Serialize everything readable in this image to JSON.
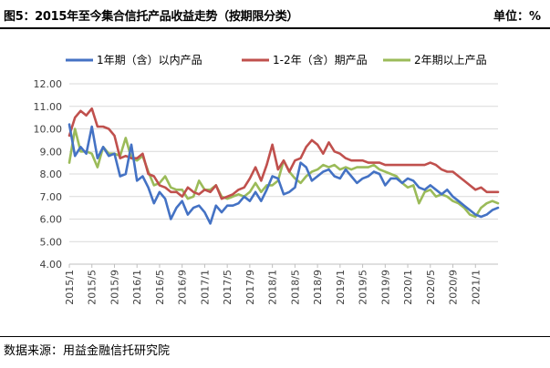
{
  "header": {
    "title": "图5：2015年至今集合信托产品收益走势（按期限分类）",
    "unit": "单位：%"
  },
  "footer": {
    "source": "数据来源：用益金融信托研究院"
  },
  "chart_data": {
    "type": "line",
    "ylim": [
      4.0,
      12.0
    ],
    "yticks": [
      "4.00",
      "5.00",
      "6.00",
      "7.00",
      "8.00",
      "9.00",
      "10.00",
      "11.00",
      "12.00"
    ],
    "x_tick_labels": [
      "2015/1",
      "2015/5",
      "2015/9",
      "2016/1",
      "2016/5",
      "2016/9",
      "2017/1",
      "2017/5",
      "2017/9",
      "2018/1",
      "2018/5",
      "2018/9",
      "2019/1",
      "2019/5",
      "2019/9",
      "2020/1",
      "2020/5",
      "2020/9",
      "2021/1"
    ],
    "x_start": "2015/1",
    "x_end": "2021/1",
    "legend_position": "top",
    "colors": {
      "series1": "#4472c4",
      "series2": "#c0504d",
      "series3": "#9bbb59"
    },
    "series": [
      {
        "name": "1年期（含）以内产品",
        "values": [
          10.2,
          8.8,
          9.2,
          8.9,
          10.1,
          8.7,
          9.2,
          8.8,
          8.9,
          7.9,
          8.0,
          9.3,
          7.7,
          7.9,
          7.4,
          6.7,
          7.2,
          6.9,
          6.0,
          6.5,
          6.8,
          6.2,
          6.5,
          6.6,
          6.3,
          5.8,
          6.6,
          6.3,
          6.6,
          6.6,
          6.7,
          7.0,
          6.8,
          7.2,
          6.8,
          7.3,
          7.9,
          7.8,
          7.1,
          7.2,
          7.4,
          8.5,
          8.3,
          7.7,
          7.9,
          8.1,
          8.2,
          7.9,
          7.8,
          8.2,
          7.9,
          7.6,
          7.8,
          7.9,
          8.1,
          8.0,
          7.5,
          7.8,
          7.8,
          7.6,
          7.8,
          7.7,
          7.4,
          7.3,
          7.5,
          7.3,
          7.1,
          7.3,
          7.0,
          6.8,
          6.6,
          6.4,
          6.2,
          6.1,
          6.2,
          6.4,
          6.5
        ]
      },
      {
        "name": "1-2年（含）期产品",
        "values": [
          9.7,
          10.5,
          10.8,
          10.6,
          10.9,
          10.1,
          10.1,
          10.0,
          9.7,
          8.7,
          8.8,
          8.7,
          8.7,
          8.9,
          8.0,
          7.9,
          7.5,
          7.4,
          7.2,
          7.2,
          7.0,
          7.4,
          7.2,
          7.1,
          7.3,
          7.2,
          7.5,
          6.9,
          7.0,
          7.1,
          7.3,
          7.4,
          7.8,
          8.3,
          7.7,
          8.4,
          9.3,
          8.2,
          8.6,
          8.1,
          8.6,
          8.7,
          9.2,
          9.5,
          9.3,
          8.9,
          9.4,
          9.0,
          8.9,
          8.7,
          8.6,
          8.6,
          8.6,
          8.5,
          8.5,
          8.5,
          8.4,
          8.4,
          8.4,
          8.4,
          8.4,
          8.4,
          8.4,
          8.4,
          8.5,
          8.4,
          8.2,
          8.1,
          8.1,
          7.9,
          7.7,
          7.5,
          7.3,
          7.4,
          7.2,
          7.2,
          7.2
        ]
      },
      {
        "name": "2年期以上产品",
        "values": [
          8.5,
          10.0,
          9.0,
          9.0,
          8.9,
          8.3,
          9.2,
          8.9,
          8.9,
          8.8,
          9.6,
          8.7,
          8.6,
          8.8,
          8.1,
          7.5,
          7.6,
          7.9,
          7.4,
          7.3,
          7.3,
          6.9,
          7.0,
          7.7,
          7.3,
          7.3,
          7.5,
          7.0,
          6.9,
          7.0,
          7.1,
          7.0,
          7.2,
          7.6,
          7.2,
          7.5,
          7.5,
          7.7,
          8.6,
          8.1,
          7.8,
          7.6,
          7.9,
          8.1,
          8.2,
          8.4,
          8.3,
          8.4,
          8.2,
          8.3,
          8.2,
          8.3,
          8.3,
          8.3,
          8.4,
          8.2,
          8.1,
          8.0,
          7.9,
          7.6,
          7.4,
          7.5,
          6.7,
          7.2,
          7.3,
          7.0,
          7.1,
          7.0,
          6.8,
          6.7,
          6.5,
          6.2,
          6.1,
          6.5,
          6.7,
          6.8,
          6.7
        ]
      }
    ]
  }
}
